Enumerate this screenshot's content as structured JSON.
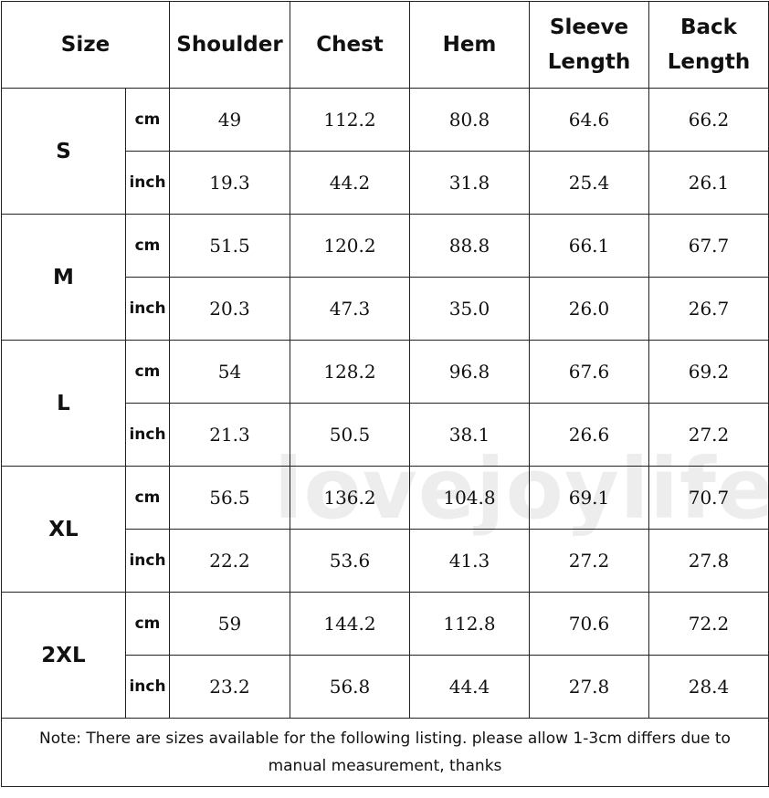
{
  "headers": [
    "Size",
    "Shoulder",
    "Chest",
    "Hem",
    "Sleeve Length",
    "Back Length"
  ],
  "units": [
    "cm",
    "inch"
  ],
  "rows": [
    {
      "size": "S",
      "cm": [
        "49",
        "112.2",
        "80.8",
        "64.6",
        "66.2"
      ],
      "inch": [
        "19.3",
        "44.2",
        "31.8",
        "25.4",
        "26.1"
      ]
    },
    {
      "size": "M",
      "cm": [
        "51.5",
        "120.2",
        "88.8",
        "66.1",
        "67.7"
      ],
      "inch": [
        "20.3",
        "47.3",
        "35.0",
        "26.0",
        "26.7"
      ]
    },
    {
      "size": "L",
      "cm": [
        "54",
        "128.2",
        "96.8",
        "67.6",
        "69.2"
      ],
      "inch": [
        "21.3",
        "50.5",
        "38.1",
        "26.6",
        "27.2"
      ]
    },
    {
      "size": "XL",
      "cm": [
        "56.5",
        "136.2",
        "104.8",
        "69.1",
        "70.7"
      ],
      "inch": [
        "22.2",
        "53.6",
        "41.3",
        "27.2",
        "27.8"
      ]
    },
    {
      "size": "2XL",
      "cm": [
        "59",
        "144.2",
        "112.8",
        "70.6",
        "72.2"
      ],
      "inch": [
        "23.2",
        "56.8",
        "44.4",
        "27.8",
        "28.4"
      ]
    }
  ],
  "note": "Note: There are sizes available for the following listing. please allow 1-3cm differs due to manual measurement, thanks",
  "watermark": "lovejoylife"
}
